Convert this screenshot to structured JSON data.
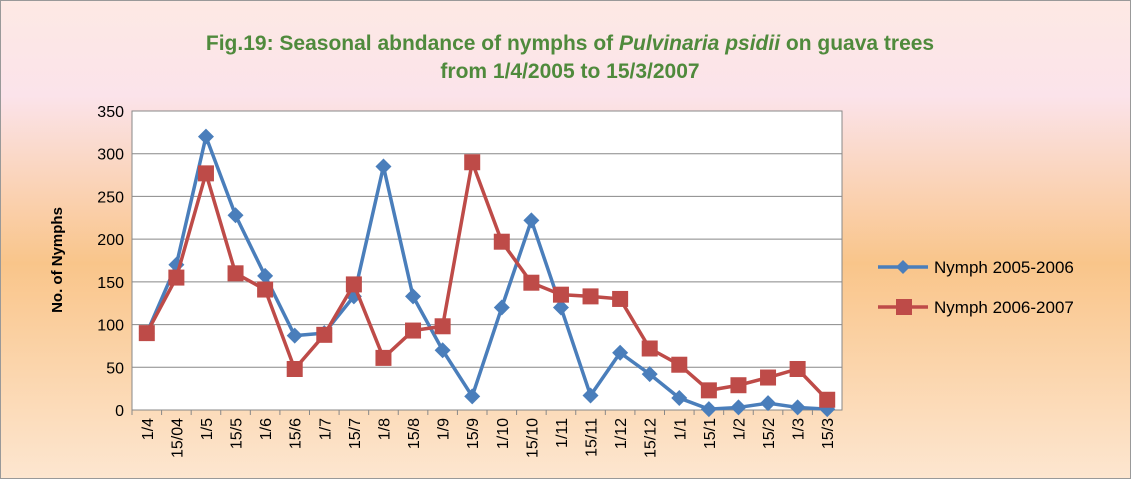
{
  "chart_data": {
    "type": "line",
    "title": [
      "Fig.19: Seasonal abndance of nymphs of ",
      "Pulvinaria psidii",
      " on guava trees",
      "from 1/4/2005 to 15/3/2007"
    ],
    "y_label": "No. of Nymphs",
    "categories": [
      "1/4",
      "15/04",
      "1/5",
      "15/5",
      "1/6",
      "15/6",
      "1/7",
      "15/7",
      "1/8",
      "15/8",
      "1/9",
      "15/9",
      "1/10",
      "15/10",
      "1/11",
      "15/11",
      "1/12",
      "15/12",
      "1/1",
      "15/1",
      "1/2",
      "15/2",
      "1/3",
      "15/3"
    ],
    "series": [
      {
        "name": "Nymph 2005-2006",
        "color": "#4a7ebb",
        "marker": "diamond",
        "values": [
          90,
          170,
          320,
          228,
          157,
          87,
          90,
          133,
          285,
          133,
          70,
          16,
          120,
          222,
          120,
          17,
          67,
          42,
          14,
          1,
          3,
          8,
          3,
          1
        ]
      },
      {
        "name": "Nymph 2006-2007",
        "color": "#be4b48",
        "marker": "square",
        "values": [
          90,
          155,
          277,
          160,
          141,
          48,
          88,
          147,
          61,
          93,
          98,
          290,
          197,
          149,
          135,
          133,
          130,
          72,
          53,
          23,
          29,
          38,
          48,
          12
        ]
      }
    ],
    "ylim": [
      0,
      350
    ],
    "yticks": [
      0,
      50,
      100,
      150,
      200,
      250,
      300,
      350
    ],
    "grid": true,
    "legend": "right"
  }
}
